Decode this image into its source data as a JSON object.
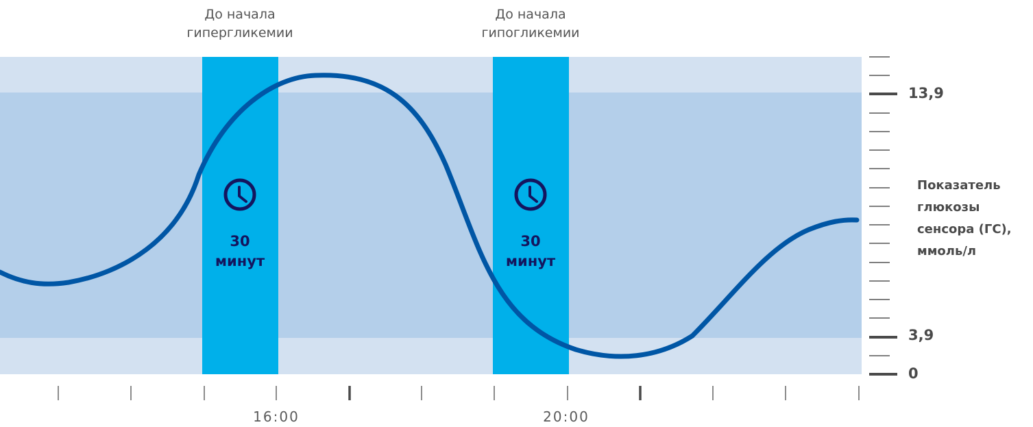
{
  "windows": [
    {
      "label_line1": "До начала",
      "label_line2": "гипергликемии",
      "duration_value": "30",
      "duration_unit": "минут",
      "icon": "clock-icon"
    },
    {
      "label_line1": "До начала",
      "label_line2": "гипогликемии",
      "duration_value": "30",
      "duration_unit": "минут",
      "icon": "clock-icon"
    }
  ],
  "x_axis": {
    "times": [
      "16:00",
      "20:00"
    ]
  },
  "y_axis": {
    "title_lines": [
      "Показатель",
      "глюкозы",
      "сенсора (ГС),",
      "ммоль/л"
    ],
    "labels": [
      "13,9",
      "3,9",
      "0"
    ]
  },
  "colors": {
    "outer_band": "#d3e1f1",
    "target_band": "#b4cfea",
    "alert_window": "#00b0ea",
    "curve": "#0056a5",
    "clock": "#14155e"
  }
}
